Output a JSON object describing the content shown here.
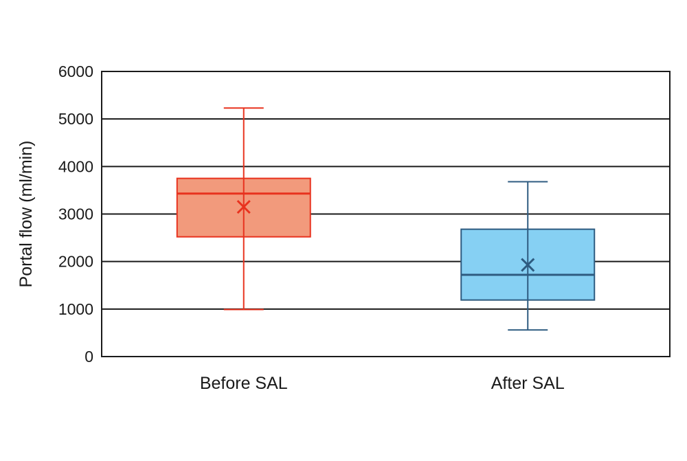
{
  "chart_data": {
    "type": "box",
    "ylabel": "Portal flow (ml/min)",
    "xlabel": "",
    "ylim": [
      0,
      6000
    ],
    "yticks": [
      0,
      1000,
      2000,
      3000,
      4000,
      5000,
      6000
    ],
    "grid": true,
    "legend": "none",
    "categories": [
      "Before SAL",
      "After SAL"
    ],
    "boxes": [
      {
        "category": "Before SAL",
        "min": 990,
        "q1": 2520,
        "median": 3430,
        "q3": 3750,
        "max": 5230,
        "mean": 3150,
        "stroke": "#e8321e",
        "fill": "#f29a7c"
      },
      {
        "category": "After SAL",
        "min": 560,
        "q1": 1190,
        "median": 1720,
        "q3": 2680,
        "max": 3680,
        "mean": 1930,
        "stroke": "#2e5b80",
        "fill": "#86d0f3"
      }
    ]
  }
}
